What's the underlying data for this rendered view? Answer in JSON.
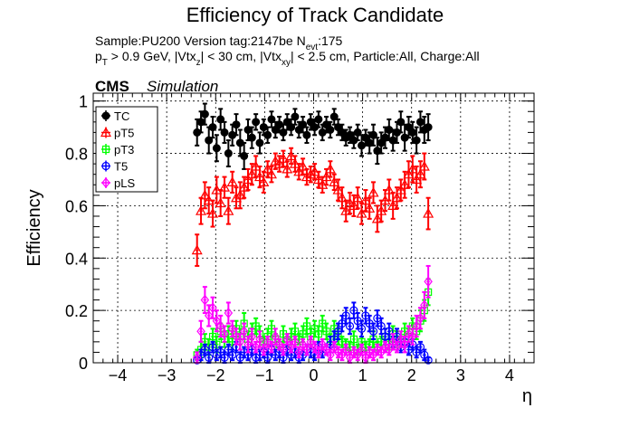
{
  "header": {
    "title": "Efficiency of Track Candidate",
    "line1_a": "Sample:PU200   Version tag:2147be  N",
    "line1_sub": "evt",
    "line1_b": ":175",
    "line2_p": "p",
    "line2_psub": "T",
    "line2_a": " > 0.9 GeV, |Vtx",
    "line2_zsub": "z",
    "line2_b": "| < 30 cm, |Vtx",
    "line2_xysub": "xy",
    "line2_c": "| < 2.5 cm, Particle:All, Charge:All",
    "cms": "CMS",
    "simulation": "Simulation"
  },
  "colors": {
    "TC": "#000000",
    "pT5": "#ff0000",
    "pT3": "#00ff00",
    "T5": "#0000ff",
    "pLS": "#ff00ff"
  },
  "chart_data": {
    "type": "scatter",
    "title": "Efficiency of Track Candidate",
    "xlabel": "η",
    "ylabel": "Efficiency",
    "xlim": [
      -4.5,
      4.5
    ],
    "ylim": [
      0,
      1.03
    ],
    "grid": true,
    "legend_position": "top-left",
    "x_ticks": [
      "−4",
      "−3",
      "−2",
      "−1",
      "0",
      "1",
      "2",
      "3",
      "4"
    ],
    "y_ticks": [
      "0",
      "0.2",
      "0.4",
      "0.6",
      "0.8",
      "1"
    ],
    "x": [
      -2.38,
      -2.3,
      -2.22,
      -2.14,
      -2.06,
      -1.98,
      -1.9,
      -1.82,
      -1.74,
      -1.66,
      -1.58,
      -1.5,
      -1.42,
      -1.34,
      -1.26,
      -1.18,
      -1.1,
      -1.02,
      -0.94,
      -0.86,
      -0.78,
      -0.7,
      -0.62,
      -0.54,
      -0.46,
      -0.38,
      -0.3,
      -0.22,
      -0.14,
      -0.06,
      0.02,
      0.1,
      0.18,
      0.26,
      0.34,
      0.42,
      0.5,
      0.58,
      0.66,
      0.74,
      0.82,
      0.9,
      0.98,
      1.06,
      1.14,
      1.22,
      1.3,
      1.38,
      1.46,
      1.54,
      1.62,
      1.7,
      1.78,
      1.86,
      1.94,
      2.02,
      2.1,
      2.18,
      2.26,
      2.34
    ],
    "series": [
      {
        "name": "TC",
        "marker": "circle-filled",
        "values": [
          0.88,
          0.92,
          0.95,
          0.85,
          0.9,
          0.82,
          0.93,
          0.88,
          0.8,
          0.87,
          0.91,
          0.84,
          0.79,
          0.89,
          0.86,
          0.92,
          0.84,
          0.9,
          0.87,
          0.93,
          0.89,
          0.91,
          0.88,
          0.92,
          0.9,
          0.94,
          0.89,
          0.91,
          0.87,
          0.92,
          0.9,
          0.93,
          0.88,
          0.91,
          0.89,
          0.94,
          0.9,
          0.88,
          0.86,
          0.87,
          0.85,
          0.88,
          0.83,
          0.86,
          0.84,
          0.87,
          0.81,
          0.84,
          0.86,
          0.89,
          0.85,
          0.88,
          0.92,
          0.86,
          0.9,
          0.88,
          0.85,
          0.92,
          0.89,
          0.9
        ],
        "errors": [
          0.05,
          0.04,
          0.04,
          0.05,
          0.04,
          0.05,
          0.04,
          0.04,
          0.05,
          0.04,
          0.04,
          0.05,
          0.05,
          0.04,
          0.04,
          0.03,
          0.04,
          0.03,
          0.03,
          0.03,
          0.03,
          0.03,
          0.03,
          0.03,
          0.03,
          0.03,
          0.03,
          0.03,
          0.03,
          0.03,
          0.03,
          0.03,
          0.03,
          0.03,
          0.03,
          0.03,
          0.03,
          0.03,
          0.03,
          0.03,
          0.03,
          0.03,
          0.04,
          0.03,
          0.04,
          0.04,
          0.05,
          0.04,
          0.04,
          0.04,
          0.04,
          0.04,
          0.04,
          0.05,
          0.04,
          0.04,
          0.05,
          0.04,
          0.05,
          0.05
        ]
      },
      {
        "name": "pT5",
        "marker": "triangle-open",
        "values": [
          0.43,
          0.58,
          0.64,
          0.62,
          0.57,
          0.66,
          0.61,
          0.67,
          0.58,
          0.69,
          0.63,
          0.64,
          0.67,
          0.7,
          0.72,
          0.75,
          0.71,
          0.69,
          0.74,
          0.72,
          0.77,
          0.76,
          0.78,
          0.74,
          0.79,
          0.76,
          0.73,
          0.75,
          0.71,
          0.72,
          0.73,
          0.7,
          0.68,
          0.71,
          0.74,
          0.69,
          0.66,
          0.63,
          0.58,
          0.61,
          0.6,
          0.63,
          0.57,
          0.62,
          0.59,
          0.65,
          0.55,
          0.58,
          0.62,
          0.66,
          0.6,
          0.63,
          0.66,
          0.68,
          0.72,
          0.74,
          0.7,
          0.72,
          0.75,
          0.57
        ],
        "errors": [
          0.06,
          0.05,
          0.05,
          0.05,
          0.05,
          0.05,
          0.05,
          0.04,
          0.05,
          0.04,
          0.04,
          0.05,
          0.04,
          0.04,
          0.04,
          0.04,
          0.04,
          0.04,
          0.03,
          0.03,
          0.03,
          0.03,
          0.03,
          0.03,
          0.03,
          0.03,
          0.03,
          0.03,
          0.03,
          0.03,
          0.03,
          0.03,
          0.03,
          0.03,
          0.03,
          0.03,
          0.04,
          0.04,
          0.04,
          0.04,
          0.04,
          0.04,
          0.04,
          0.04,
          0.04,
          0.04,
          0.05,
          0.04,
          0.04,
          0.04,
          0.05,
          0.04,
          0.04,
          0.05,
          0.05,
          0.05,
          0.05,
          0.05,
          0.05,
          0.06
        ]
      },
      {
        "name": "pT3",
        "marker": "square-open",
        "values": [
          0.03,
          0.05,
          0.08,
          0.06,
          0.1,
          0.07,
          0.12,
          0.09,
          0.11,
          0.08,
          0.13,
          0.1,
          0.15,
          0.09,
          0.12,
          0.14,
          0.11,
          0.08,
          0.1,
          0.13,
          0.09,
          0.07,
          0.11,
          0.08,
          0.1,
          0.12,
          0.09,
          0.11,
          0.14,
          0.1,
          0.13,
          0.11,
          0.15,
          0.12,
          0.09,
          0.13,
          0.1,
          0.08,
          0.07,
          0.06,
          0.09,
          0.05,
          0.08,
          0.06,
          0.07,
          0.09,
          0.06,
          0.08,
          0.1,
          0.07,
          0.11,
          0.09,
          0.08,
          0.12,
          0.1,
          0.14,
          0.12,
          0.16,
          0.2,
          0.27
        ],
        "errors": [
          0.02,
          0.03,
          0.03,
          0.03,
          0.03,
          0.03,
          0.03,
          0.03,
          0.03,
          0.03,
          0.03,
          0.03,
          0.04,
          0.03,
          0.03,
          0.03,
          0.03,
          0.02,
          0.03,
          0.03,
          0.02,
          0.02,
          0.03,
          0.02,
          0.03,
          0.03,
          0.02,
          0.03,
          0.03,
          0.03,
          0.03,
          0.03,
          0.03,
          0.03,
          0.02,
          0.03,
          0.03,
          0.02,
          0.02,
          0.02,
          0.03,
          0.02,
          0.02,
          0.02,
          0.02,
          0.03,
          0.02,
          0.02,
          0.03,
          0.02,
          0.03,
          0.03,
          0.02,
          0.03,
          0.03,
          0.03,
          0.03,
          0.04,
          0.04,
          0.05
        ]
      },
      {
        "name": "T5",
        "marker": "circle-open",
        "values": [
          0.01,
          0.03,
          0.05,
          0.02,
          0.06,
          0.03,
          0.04,
          0.02,
          0.05,
          0.03,
          0.06,
          0.02,
          0.04,
          0.03,
          0.05,
          0.02,
          0.03,
          0.04,
          0.02,
          0.05,
          0.03,
          0.04,
          0.02,
          0.05,
          0.03,
          0.04,
          0.02,
          0.03,
          0.05,
          0.04,
          0.03,
          0.06,
          0.04,
          0.05,
          0.07,
          0.09,
          0.12,
          0.15,
          0.18,
          0.14,
          0.2,
          0.16,
          0.13,
          0.18,
          0.15,
          0.12,
          0.17,
          0.14,
          0.1,
          0.12,
          0.08,
          0.1,
          0.06,
          0.08,
          0.05,
          0.07,
          0.04,
          0.06,
          0.03,
          0.01
        ],
        "errors": [
          0.01,
          0.02,
          0.02,
          0.02,
          0.02,
          0.02,
          0.02,
          0.02,
          0.02,
          0.02,
          0.02,
          0.02,
          0.02,
          0.02,
          0.02,
          0.02,
          0.02,
          0.02,
          0.02,
          0.02,
          0.02,
          0.02,
          0.02,
          0.02,
          0.02,
          0.02,
          0.02,
          0.02,
          0.02,
          0.02,
          0.02,
          0.02,
          0.02,
          0.02,
          0.03,
          0.03,
          0.03,
          0.03,
          0.03,
          0.03,
          0.03,
          0.03,
          0.03,
          0.03,
          0.03,
          0.03,
          0.03,
          0.03,
          0.03,
          0.03,
          0.02,
          0.03,
          0.02,
          0.02,
          0.02,
          0.02,
          0.02,
          0.02,
          0.02,
          0.01
        ]
      },
      {
        "name": "pLS",
        "marker": "diamond-open",
        "values": [
          0.02,
          0.12,
          0.24,
          0.18,
          0.21,
          0.16,
          0.14,
          0.11,
          0.19,
          0.13,
          0.1,
          0.08,
          0.12,
          0.07,
          0.1,
          0.06,
          0.09,
          0.05,
          0.08,
          0.06,
          0.1,
          0.07,
          0.05,
          0.09,
          0.06,
          0.08,
          0.04,
          0.07,
          0.05,
          0.08,
          0.06,
          0.04,
          0.07,
          0.05,
          0.03,
          0.06,
          0.04,
          0.03,
          0.05,
          0.02,
          0.04,
          0.03,
          0.05,
          0.02,
          0.04,
          0.03,
          0.05,
          0.04,
          0.06,
          0.05,
          0.08,
          0.06,
          0.09,
          0.07,
          0.11,
          0.1,
          0.14,
          0.17,
          0.22,
          0.31
        ],
        "errors": [
          0.02,
          0.04,
          0.05,
          0.04,
          0.04,
          0.04,
          0.04,
          0.03,
          0.04,
          0.03,
          0.03,
          0.03,
          0.03,
          0.03,
          0.03,
          0.02,
          0.03,
          0.02,
          0.02,
          0.02,
          0.03,
          0.02,
          0.02,
          0.02,
          0.02,
          0.02,
          0.02,
          0.02,
          0.02,
          0.02,
          0.02,
          0.02,
          0.02,
          0.02,
          0.02,
          0.02,
          0.02,
          0.02,
          0.02,
          0.02,
          0.02,
          0.02,
          0.02,
          0.02,
          0.02,
          0.02,
          0.02,
          0.02,
          0.02,
          0.02,
          0.03,
          0.02,
          0.03,
          0.03,
          0.03,
          0.03,
          0.04,
          0.04,
          0.05,
          0.06
        ]
      }
    ]
  }
}
